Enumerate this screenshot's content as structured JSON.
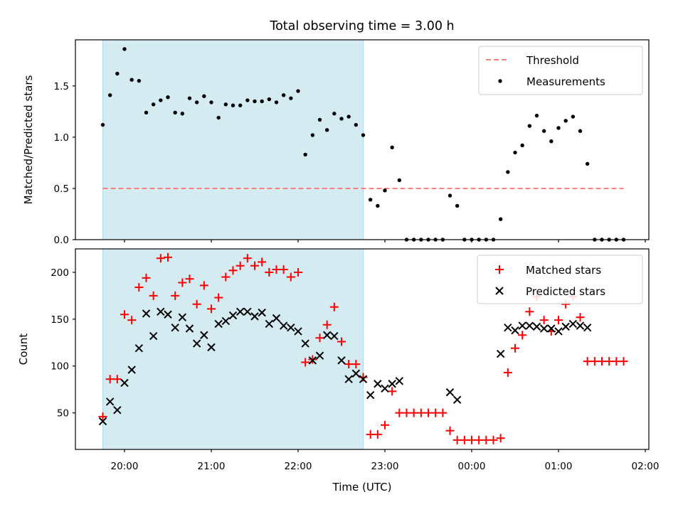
{
  "chart_data": [
    {
      "type": "scatter",
      "title": "Total observing time = 3.00 h",
      "xlabel": "",
      "ylabel": "Matched/Predicted stars",
      "ylim": [
        0,
        1.95
      ],
      "yticks": [
        0.0,
        0.5,
        1.0,
        1.5
      ],
      "ytick_labels": [
        "0.0",
        "0.5",
        "1.0",
        "1.5"
      ],
      "x_range": [
        "19:31",
        "02:04"
      ],
      "shaded_interval": {
        "start": "19:45",
        "end": "22:45",
        "color": "#d4ebf1"
      },
      "legend": {
        "position": "top-right",
        "entries": [
          "Threshold",
          "Measurements"
        ]
      },
      "threshold": {
        "name": "Threshold",
        "y": 0.5,
        "x_start": "19:45",
        "x_end": "01:45",
        "color": "#ff7f7f",
        "style": "dashed"
      },
      "series": [
        {
          "name": "Measurements",
          "marker": "dot",
          "color": "#000000",
          "points": [
            [
              "19:45",
              1.12
            ],
            [
              "19:50",
              1.41
            ],
            [
              "19:55",
              1.62
            ],
            [
              "20:00",
              1.86
            ],
            [
              "20:05",
              1.56
            ],
            [
              "20:10",
              1.55
            ],
            [
              "20:15",
              1.24
            ],
            [
              "20:20",
              1.32
            ],
            [
              "20:25",
              1.36
            ],
            [
              "20:30",
              1.39
            ],
            [
              "20:35",
              1.24
            ],
            [
              "20:40",
              1.23
            ],
            [
              "20:45",
              1.38
            ],
            [
              "20:50",
              1.34
            ],
            [
              "20:55",
              1.4
            ],
            [
              "21:00",
              1.34
            ],
            [
              "21:05",
              1.19
            ],
            [
              "21:10",
              1.32
            ],
            [
              "21:15",
              1.31
            ],
            [
              "21:20",
              1.31
            ],
            [
              "21:25",
              1.36
            ],
            [
              "21:30",
              1.35
            ],
            [
              "21:35",
              1.35
            ],
            [
              "21:40",
              1.37
            ],
            [
              "21:45",
              1.34
            ],
            [
              "21:50",
              1.41
            ],
            [
              "21:55",
              1.38
            ],
            [
              "22:00",
              1.45
            ],
            [
              "22:05",
              0.83
            ],
            [
              "22:10",
              1.02
            ],
            [
              "22:15",
              1.17
            ],
            [
              "22:20",
              1.07
            ],
            [
              "22:25",
              1.23
            ],
            [
              "22:30",
              1.18
            ],
            [
              "22:35",
              1.2
            ],
            [
              "22:40",
              1.12
            ],
            [
              "22:45",
              1.02
            ],
            [
              "22:50",
              0.39
            ],
            [
              "22:55",
              0.33
            ],
            [
              "23:00",
              0.48
            ],
            [
              "23:05",
              0.9
            ],
            [
              "23:10",
              0.58
            ],
            [
              "23:15",
              0.0
            ],
            [
              "23:20",
              0.0
            ],
            [
              "23:25",
              0.0
            ],
            [
              "23:30",
              0.0
            ],
            [
              "23:35",
              0.0
            ],
            [
              "23:40",
              0.0
            ],
            [
              "23:45",
              0.43
            ],
            [
              "23:50",
              0.33
            ],
            [
              "23:55",
              0.0
            ],
            [
              "00:00",
              0.0
            ],
            [
              "00:05",
              0.0
            ],
            [
              "00:10",
              0.0
            ],
            [
              "00:15",
              0.0
            ],
            [
              "00:20",
              0.2
            ],
            [
              "00:25",
              0.66
            ],
            [
              "00:30",
              0.85
            ],
            [
              "00:35",
              0.92
            ],
            [
              "00:40",
              1.11
            ],
            [
              "00:45",
              1.21
            ],
            [
              "00:50",
              1.06
            ],
            [
              "00:55",
              0.96
            ],
            [
              "01:00",
              1.09
            ],
            [
              "01:05",
              1.16
            ],
            [
              "01:10",
              1.2
            ],
            [
              "01:15",
              1.06
            ],
            [
              "01:20",
              0.74
            ],
            [
              "01:25",
              0.0
            ],
            [
              "01:30",
              0.0
            ],
            [
              "01:35",
              0.0
            ],
            [
              "01:40",
              0.0
            ],
            [
              "01:45",
              0.0
            ]
          ]
        }
      ]
    },
    {
      "type": "scatter",
      "title": "",
      "xlabel": "Time (UTC)",
      "ylabel": "Count",
      "ylim": [
        11,
        225
      ],
      "yticks": [
        50,
        100,
        150,
        200
      ],
      "ytick_labels": [
        "50",
        "100",
        "150",
        "200"
      ],
      "x_range": [
        "19:31",
        "02:04"
      ],
      "xticks": [
        "20:00",
        "21:00",
        "22:00",
        "23:00",
        "00:00",
        "01:00",
        "02:00"
      ],
      "shaded_interval": {
        "start": "19:45",
        "end": "22:45",
        "color": "#d4ebf1"
      },
      "legend": {
        "position": "top-right",
        "entries": [
          "Matched stars",
          "Predicted stars"
        ]
      },
      "series": [
        {
          "name": "Matched stars",
          "marker": "plus",
          "color": "#ff0000",
          "points": [
            [
              "19:45",
              46
            ],
            [
              "19:50",
              86
            ],
            [
              "19:55",
              86
            ],
            [
              "20:00",
              155
            ],
            [
              "20:05",
              149
            ],
            [
              "20:10",
              184
            ],
            [
              "20:15",
              194
            ],
            [
              "20:20",
              175
            ],
            [
              "20:25",
              215
            ],
            [
              "20:30",
              216
            ],
            [
              "20:35",
              175
            ],
            [
              "20:40",
              189
            ],
            [
              "20:45",
              193
            ],
            [
              "20:50",
              166
            ],
            [
              "20:55",
              186
            ],
            [
              "21:00",
              161
            ],
            [
              "21:05",
              173
            ],
            [
              "21:10",
              195
            ],
            [
              "21:15",
              202
            ],
            [
              "21:20",
              207
            ],
            [
              "21:25",
              215
            ],
            [
              "21:30",
              207
            ],
            [
              "21:35",
              211
            ],
            [
              "21:40",
              200
            ],
            [
              "21:45",
              203
            ],
            [
              "21:50",
              203
            ],
            [
              "21:55",
              195
            ],
            [
              "22:00",
              200
            ],
            [
              "22:05",
              104
            ],
            [
              "22:10",
              107
            ],
            [
              "22:15",
              130
            ],
            [
              "22:20",
              144
            ],
            [
              "22:25",
              163
            ],
            [
              "22:30",
              126
            ],
            [
              "22:35",
              102
            ],
            [
              "22:40",
              102
            ],
            [
              "22:45",
              88
            ],
            [
              "22:50",
              27
            ],
            [
              "22:55",
              27
            ],
            [
              "23:00",
              37
            ],
            [
              "23:05",
              73
            ],
            [
              "23:10",
              50
            ],
            [
              "23:15",
              50
            ],
            [
              "23:20",
              50
            ],
            [
              "23:25",
              50
            ],
            [
              "23:30",
              50
            ],
            [
              "23:35",
              50
            ],
            [
              "23:40",
              50
            ],
            [
              "23:45",
              31
            ],
            [
              "23:50",
              21
            ],
            [
              "23:55",
              21
            ],
            [
              "00:00",
              21
            ],
            [
              "00:05",
              21
            ],
            [
              "00:10",
              21
            ],
            [
              "00:15",
              21
            ],
            [
              "00:20",
              23
            ],
            [
              "00:25",
              93
            ],
            [
              "00:30",
              119
            ],
            [
              "00:35",
              133
            ],
            [
              "00:40",
              158
            ],
            [
              "00:45",
              174
            ],
            [
              "00:50",
              149
            ],
            [
              "00:55",
              137
            ],
            [
              "01:00",
              149
            ],
            [
              "01:05",
              166
            ],
            [
              "01:10",
              174
            ],
            [
              "01:15",
              152
            ],
            [
              "01:20",
              105
            ],
            [
              "01:25",
              105
            ],
            [
              "01:30",
              105
            ],
            [
              "01:35",
              105
            ],
            [
              "01:40",
              105
            ],
            [
              "01:45",
              105
            ]
          ]
        },
        {
          "name": "Predicted stars",
          "marker": "x",
          "color": "#000000",
          "points": [
            [
              "19:45",
              41
            ],
            [
              "19:50",
              62
            ],
            [
              "19:55",
              53
            ],
            [
              "20:00",
              82
            ],
            [
              "20:05",
              96
            ],
            [
              "20:10",
              119
            ],
            [
              "20:15",
              156
            ],
            [
              "20:20",
              132
            ],
            [
              "20:25",
              158
            ],
            [
              "20:30",
              155
            ],
            [
              "20:35",
              141
            ],
            [
              "20:40",
              152
            ],
            [
              "20:45",
              140
            ],
            [
              "20:50",
              124
            ],
            [
              "20:55",
              133
            ],
            [
              "21:00",
              120
            ],
            [
              "21:05",
              145
            ],
            [
              "21:10",
              148
            ],
            [
              "21:15",
              154
            ],
            [
              "21:20",
              158
            ],
            [
              "21:25",
              158
            ],
            [
              "21:30",
              153
            ],
            [
              "21:35",
              157
            ],
            [
              "21:40",
              145
            ],
            [
              "21:45",
              151
            ],
            [
              "21:50",
              143
            ],
            [
              "21:55",
              141
            ],
            [
              "22:00",
              137
            ],
            [
              "22:05",
              124
            ],
            [
              "22:10",
              106
            ],
            [
              "22:15",
              111
            ],
            [
              "22:20",
              133
            ],
            [
              "22:25",
              132
            ],
            [
              "22:30",
              106
            ],
            [
              "22:35",
              86
            ],
            [
              "22:40",
              92
            ],
            [
              "22:45",
              86
            ],
            [
              "22:50",
              69
            ],
            [
              "22:55",
              81
            ],
            [
              "23:00",
              76
            ],
            [
              "23:05",
              81
            ],
            [
              "23:10",
              84
            ],
            [
              "23:45",
              72
            ],
            [
              "23:50",
              64
            ],
            [
              "00:20",
              113
            ],
            [
              "00:25",
              141
            ],
            [
              "00:30",
              138
            ],
            [
              "00:35",
              143
            ],
            [
              "00:40",
              143
            ],
            [
              "00:45",
              142
            ],
            [
              "00:50",
              140
            ],
            [
              "00:55",
              140
            ],
            [
              "01:00",
              137
            ],
            [
              "01:05",
              142
            ],
            [
              "01:10",
              145
            ],
            [
              "01:15",
              143
            ],
            [
              "01:20",
              141
            ]
          ]
        }
      ]
    }
  ]
}
